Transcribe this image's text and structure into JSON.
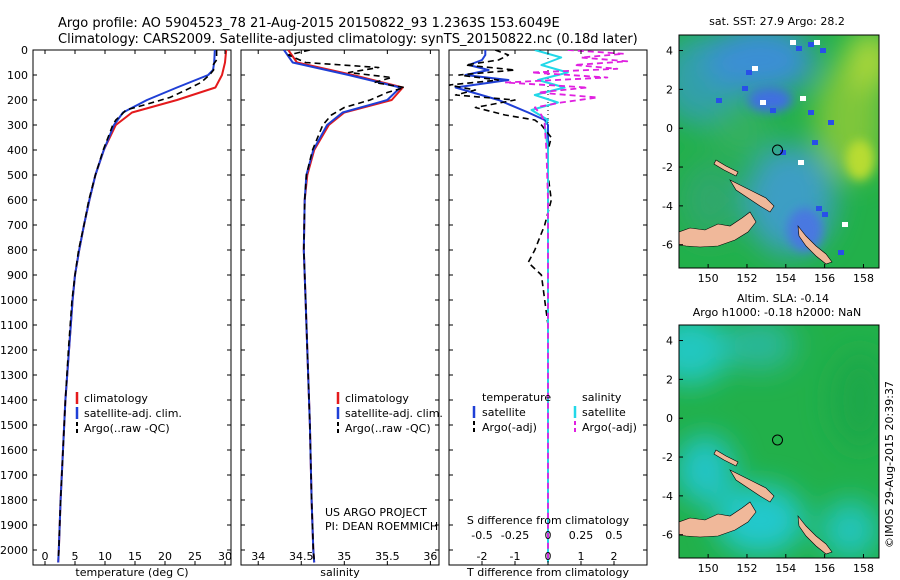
{
  "header": {
    "line1": "Argo profile: AO 5904523_78 21-Aug-2015 20150822_93 1.2363S 153.6049E",
    "line2": "Climatology: CARS2009. Satellite-adjusted climatology: synTS_20150822.nc (0.18d later)"
  },
  "colors": {
    "climatology": "#e41a1c",
    "satellite": "#1f3fd6",
    "argo": "#000000",
    "satellite_s": "#22d8e8",
    "argo_s": "#e020e0",
    "land": "#f0b89a"
  },
  "depth_ticks": [
    0,
    100,
    200,
    300,
    400,
    500,
    600,
    700,
    800,
    900,
    1000,
    1100,
    1200,
    1300,
    1400,
    1500,
    1600,
    1700,
    1800,
    1900,
    2000
  ],
  "chart_data": [
    {
      "type": "line",
      "panel": "temperature",
      "xlabel": "temperature (deg C)",
      "xticks": [
        0,
        5,
        10,
        15,
        20,
        25,
        30
      ],
      "xlim": [
        -2,
        31
      ],
      "ylim": [
        2060,
        0
      ],
      "legend": [
        "climatology",
        "satellite-adj. clim.",
        "Argo(..raw -QC)"
      ],
      "series": [
        {
          "name": "climatology",
          "color": "#e41a1c",
          "width": 2,
          "depth": [
            0,
            50,
            100,
            150,
            200,
            250,
            300,
            400,
            500,
            600,
            700,
            800,
            900,
            1000,
            1200,
            1400,
            1600,
            1800,
            2000,
            2050
          ],
          "values": [
            30.2,
            30.0,
            29.5,
            28.4,
            22.0,
            14.5,
            11.8,
            9.8,
            8.4,
            7.4,
            6.5,
            5.7,
            5.0,
            4.6,
            4.0,
            3.4,
            3.0,
            2.6,
            2.3,
            2.2
          ]
        },
        {
          "name": "satellite-adj. clim.",
          "color": "#1f3fd6",
          "width": 2,
          "depth": [
            0,
            50,
            80,
            100,
            150,
            200,
            250,
            300,
            400,
            500,
            600,
            700,
            800,
            900,
            1000,
            1200,
            1400,
            1600,
            1800,
            2000,
            2050
          ],
          "values": [
            28.3,
            28.2,
            28.0,
            27.2,
            22.0,
            17.0,
            13.0,
            11.5,
            9.8,
            8.4,
            7.4,
            6.5,
            5.7,
            5.0,
            4.6,
            4.0,
            3.4,
            3.0,
            2.6,
            2.3,
            2.2
          ]
        },
        {
          "name": "Argo(..raw -QC)",
          "color": "#000000",
          "width": 1.6,
          "dash": "6,4",
          "depth": [
            0,
            40,
            60,
            80,
            100,
            130,
            160,
            190,
            220,
            240,
            260,
            280,
            300,
            350,
            400,
            500,
            600,
            700,
            800,
            900,
            1000,
            1200,
            1400,
            1600,
            1800,
            2000,
            2040
          ],
          "values": [
            28.6,
            28.6,
            28.0,
            28.1,
            27.4,
            26.0,
            23.5,
            20.8,
            16.5,
            13.5,
            12.7,
            11.8,
            11.3,
            10.5,
            9.7,
            8.4,
            7.3,
            6.5,
            5.6,
            5.0,
            4.5,
            3.9,
            3.4,
            3.0,
            2.6,
            2.3,
            2.2
          ]
        }
      ]
    },
    {
      "type": "line",
      "panel": "salinity",
      "xlabel": "salinity",
      "xticks": [
        34,
        34.5,
        35,
        35.5,
        36
      ],
      "xlim": [
        33.8,
        36.1
      ],
      "ylim": [
        2060,
        0
      ],
      "legend": [
        "climatology",
        "satellite-adj. clim.",
        "Argo(..raw -QC)"
      ],
      "note_lines": [
        "US ARGO PROJECT",
        "PI: DEAN ROEMMICH"
      ],
      "series": [
        {
          "name": "climatology",
          "color": "#e41a1c",
          "width": 2,
          "depth": [
            0,
            50,
            100,
            150,
            200,
            250,
            300,
            400,
            500,
            600,
            800,
            1000,
            1200,
            1500,
            1800,
            2000,
            2050
          ],
          "values": [
            34.35,
            34.45,
            35.1,
            35.68,
            35.55,
            35.0,
            34.82,
            34.65,
            34.57,
            34.54,
            34.53,
            34.55,
            34.57,
            34.6,
            34.62,
            34.64,
            34.65
          ]
        },
        {
          "name": "satellite-adj. clim.",
          "color": "#1f3fd6",
          "width": 2,
          "depth": [
            0,
            50,
            100,
            150,
            200,
            250,
            300,
            400,
            500,
            600,
            800,
            1000,
            1200,
            1500,
            1800,
            2000,
            2050
          ],
          "values": [
            34.3,
            34.4,
            35.05,
            35.65,
            35.5,
            34.98,
            34.8,
            34.64,
            34.56,
            34.54,
            34.53,
            34.55,
            34.57,
            34.6,
            34.62,
            34.64,
            34.65
          ]
        },
        {
          "name": "Argo(..raw -QC)",
          "color": "#000000",
          "width": 1.6,
          "dash": "6,4",
          "depth": [
            0,
            20,
            50,
            70,
            90,
            110,
            130,
            150,
            170,
            200,
            230,
            260,
            300,
            400,
            500,
            600,
            800,
            1000,
            1200,
            1500,
            1800,
            2000,
            2040
          ],
          "values": [
            34.6,
            34.35,
            34.55,
            35.4,
            35.05,
            35.55,
            35.35,
            35.7,
            35.5,
            35.3,
            35.0,
            34.85,
            34.75,
            34.63,
            34.56,
            34.54,
            34.53,
            34.55,
            34.57,
            34.6,
            34.62,
            34.64,
            34.65
          ]
        }
      ]
    },
    {
      "type": "line",
      "panel": "difference",
      "xlabel": "T difference from climatology",
      "xlabel_top": "S difference from climatology",
      "xticks": [
        -2,
        -1,
        0,
        1,
        2
      ],
      "xticks_top": [
        "-0.5",
        "-0.25",
        "0",
        "0.25",
        "0.5"
      ],
      "xlim": [
        -3,
        3
      ],
      "ylim": [
        2060,
        0
      ],
      "legend_t_title": "temperature",
      "legend_s_title": "salinity",
      "legend_t": [
        "satellite",
        "Argo(-adj)"
      ],
      "legend_s": [
        "satellite",
        "Argo(-adj)"
      ],
      "series": [
        {
          "name": "T satellite",
          "color": "#1f3fd6",
          "width": 2,
          "depth": [
            0,
            20,
            40,
            60,
            80,
            100,
            120,
            150,
            200,
            250,
            280,
            300,
            350,
            400,
            600,
            800,
            1000,
            1500,
            2000,
            2050
          ],
          "values": [
            -1.9,
            -1.9,
            -2.0,
            -2.4,
            -1.8,
            -2.5,
            -1.2,
            -2.8,
            -1.5,
            -0.6,
            -0.1,
            0.0,
            0.0,
            0.0,
            0.0,
            0.0,
            0.0,
            0.0,
            0.0,
            0.0
          ]
        },
        {
          "name": "T Argo(-adj)",
          "color": "#000000",
          "width": 1.6,
          "dash": "6,4",
          "depth": [
            0,
            20,
            40,
            60,
            80,
            100,
            120,
            140,
            160,
            180,
            200,
            230,
            260,
            280,
            300,
            350,
            400,
            500,
            600,
            700,
            800,
            850,
            900,
            1000,
            1100,
            1200,
            1500,
            1800,
            2000,
            2040
          ],
          "values": [
            -1.6,
            -1.2,
            -1.5,
            -2.5,
            -1.0,
            -2.7,
            -1.5,
            -3.0,
            -2.2,
            -2.8,
            -1.0,
            -2.2,
            -1.3,
            -0.4,
            -0.2,
            0.1,
            0.0,
            0.0,
            0.1,
            -0.1,
            -0.4,
            -0.6,
            -0.2,
            -0.1,
            0.0,
            0.0,
            0.0,
            0.0,
            0.0,
            0.0
          ]
        },
        {
          "name": "S satellite",
          "color": "#22d8e8",
          "width": 2,
          "depth": [
            0,
            30,
            60,
            90,
            120,
            150,
            180,
            210,
            240,
            280,
            300,
            400,
            600,
            800,
            1000,
            1500,
            2000,
            2050
          ],
          "values": [
            -0.4,
            0.4,
            -0.2,
            0.6,
            -0.3,
            0.5,
            -0.4,
            0.3,
            -0.5,
            0.0,
            -0.1,
            0.0,
            0.0,
            0.0,
            0.0,
            0.0,
            0.0,
            0.0
          ]
        },
        {
          "name": "S Argo(-adj)",
          "color": "#e020e0",
          "width": 1.8,
          "dash": "6,4",
          "depth": [
            0,
            15,
            30,
            45,
            60,
            75,
            90,
            110,
            130,
            150,
            170,
            190,
            210,
            230,
            260,
            290,
            300,
            400,
            600,
            800,
            1000,
            1500,
            2000,
            2040
          ],
          "values": [
            0.6,
            2.3,
            1.0,
            2.4,
            0.8,
            2.1,
            -0.5,
            1.8,
            -1.3,
            1.2,
            -0.3,
            1.5,
            0.4,
            -0.4,
            -0.2,
            -0.1,
            -0.1,
            -0.05,
            0.0,
            0.0,
            0.0,
            0.0,
            0.0,
            0.0
          ]
        }
      ]
    },
    {
      "type": "heatmap",
      "panel": "sst-map",
      "title": "sat. SST: 27.9 Argo: 28.2",
      "xticks": [
        150,
        152,
        154,
        156,
        158
      ],
      "yticks": [
        4,
        2,
        0,
        -2,
        -4,
        -6
      ],
      "xlim": [
        148.5,
        158.8
      ],
      "ylim": [
        -7.2,
        4.8
      ],
      "marker": {
        "lon": 153.6049,
        "lat": -1.2363
      }
    },
    {
      "type": "heatmap",
      "panel": "sla-map",
      "title_line1": "Altim. SLA: -0.14",
      "title_line2": "Argo h1000: -0.18 h2000: NaN",
      "xticks": [
        150,
        152,
        154,
        156,
        158
      ],
      "yticks": [
        4,
        2,
        0,
        -2,
        -4,
        -6
      ],
      "xlim": [
        148.5,
        158.8
      ],
      "ylim": [
        -7.2,
        4.8
      ],
      "marker": {
        "lon": 153.6049,
        "lat": -1.2363
      }
    }
  ],
  "side_stamp": "©IMOS 29-Aug-2015 20:39:37"
}
